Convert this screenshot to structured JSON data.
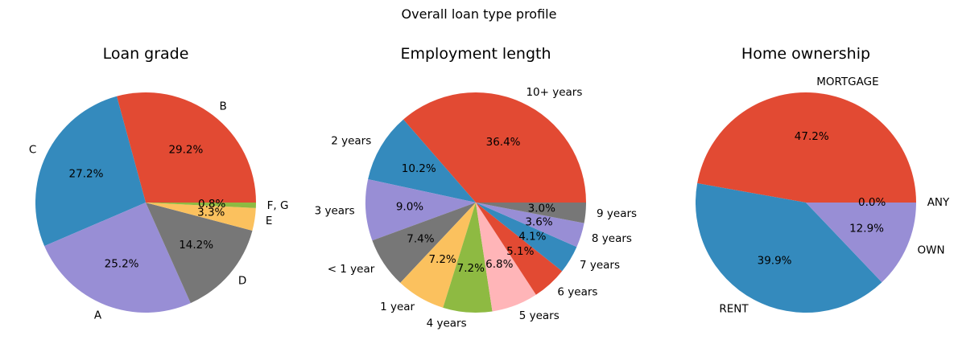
{
  "suptitle": "Overall loan type profile",
  "chart_data": [
    {
      "type": "pie",
      "title": "Loan grade",
      "labels": [
        "B",
        "C",
        "A",
        "D",
        "E",
        "F, G"
      ],
      "values": [
        29.2,
        27.2,
        25.2,
        14.2,
        3.3,
        0.8
      ],
      "value_labels": [
        "29.2%",
        "27.2%",
        "25.2%",
        "14.2%",
        "3.3%",
        "0.8%"
      ],
      "colors": [
        "#E24A33",
        "#348ABD",
        "#988ED5",
        "#777777",
        "#FBC15E",
        "#8EBA42"
      ]
    },
    {
      "type": "pie",
      "title": "Employment length",
      "labels": [
        "10+ years",
        "2 years",
        "3 years",
        "< 1 year",
        "1 year",
        "4 years",
        "5 years",
        "6 years",
        "7 years",
        "8 years",
        "9 years"
      ],
      "values": [
        36.4,
        10.2,
        9.0,
        7.4,
        7.2,
        7.2,
        6.8,
        5.1,
        4.1,
        3.6,
        3.0
      ],
      "value_labels": [
        "36.4%",
        "10.2%",
        "9.0%",
        "7.4%",
        "7.2%",
        "7.2%",
        "6.8%",
        "5.1%",
        "4.1%",
        "3.6%",
        "3.0%"
      ],
      "colors": [
        "#E24A33",
        "#348ABD",
        "#988ED5",
        "#777777",
        "#FBC15E",
        "#8EBA42",
        "#FFB5B8",
        "#E24A33",
        "#348ABD",
        "#988ED5",
        "#777777"
      ]
    },
    {
      "type": "pie",
      "title": "Home ownership",
      "labels": [
        "MORTGAGE",
        "RENT",
        "OWN",
        "ANY"
      ],
      "values": [
        47.2,
        39.9,
        12.9,
        0.0
      ],
      "value_labels": [
        "47.2%",
        "39.9%",
        "12.9%",
        "0.0%"
      ],
      "colors": [
        "#E24A33",
        "#348ABD",
        "#988ED5",
        "#777777"
      ]
    }
  ]
}
